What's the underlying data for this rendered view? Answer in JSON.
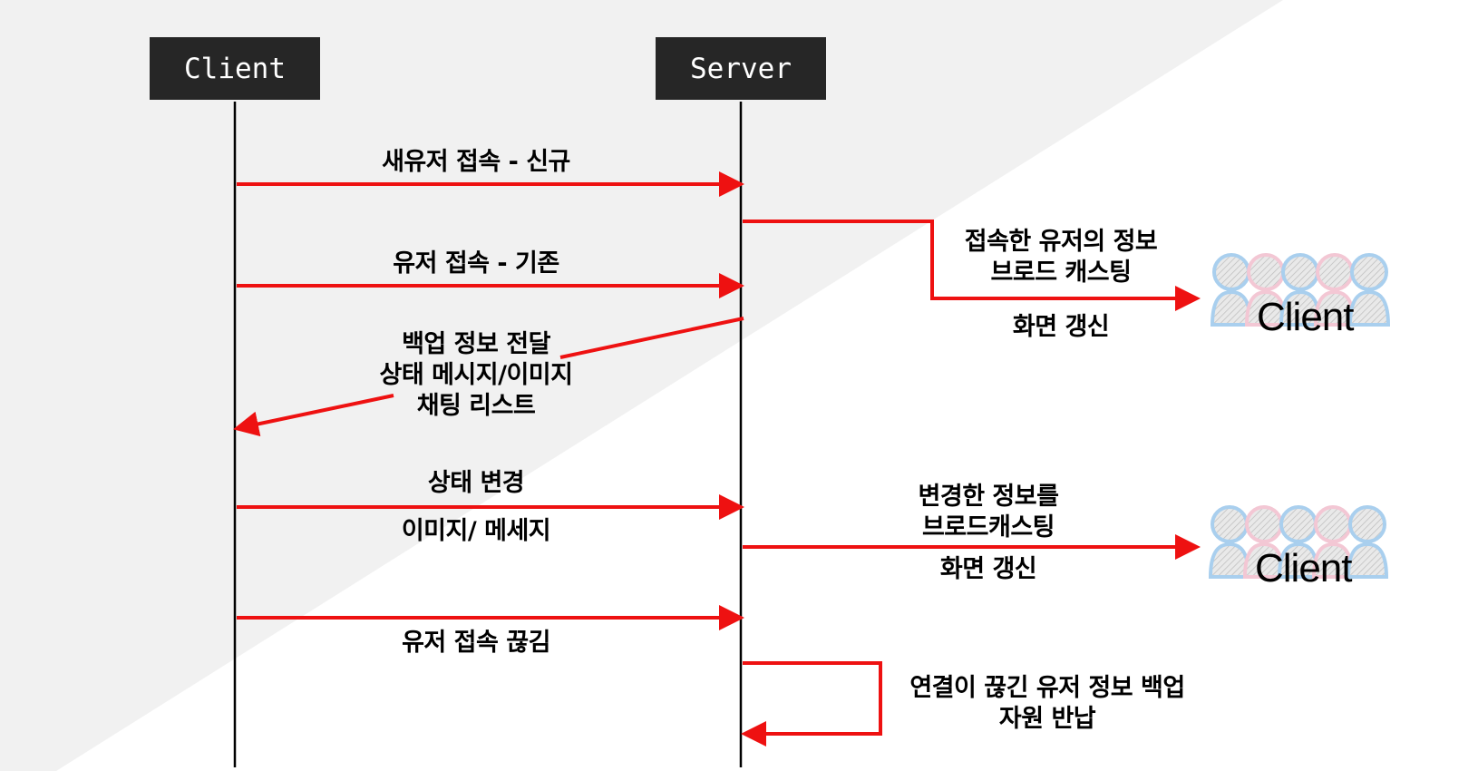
{
  "actors": {
    "client": "Client",
    "server": "Server"
  },
  "messages": {
    "new_user": "새유저 접속 - 신규",
    "existing_user": "유저 접속 - 기존",
    "backup": "백업 정보 전달\n상태 메시지/이미지\n채팅 리스트",
    "status_change": "상태 변경",
    "status_change_sub": "이미지/ 메세지",
    "disconnect": "유저 접속 끊김"
  },
  "server_side": {
    "broadcast_join": "접속한 유저의 정보\n브로드 캐스팅",
    "screen_refresh_1": "화면 갱신",
    "broadcast_change": "변경한 정보를\n브로드캐스팅",
    "screen_refresh_2": "화면 갱신",
    "disconnect_backup": "연결이 끊긴 유저 정보 백업\n자원 반납"
  },
  "client_groups": {
    "group1": "Client",
    "group2": "Client"
  },
  "colors": {
    "arrow": "#ee1111",
    "actor_box": "#262626",
    "background_gray": "#f1f1f1",
    "person_blue": "#a9cfee",
    "person_pink": "#f3c7d4"
  },
  "icons": {
    "client_group": "people-group-icon"
  }
}
